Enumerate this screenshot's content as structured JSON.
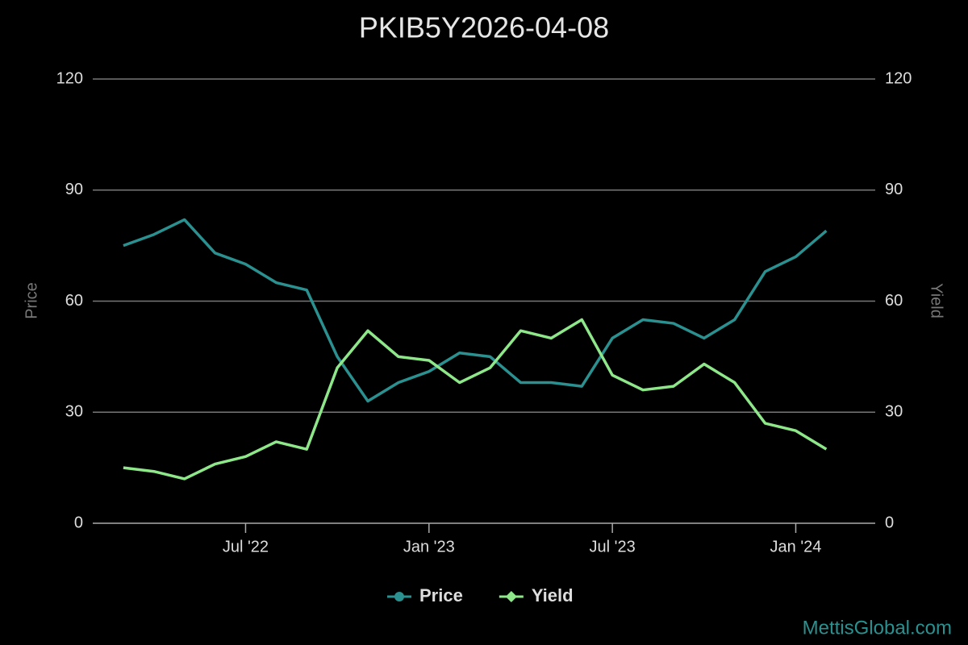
{
  "chart_data": {
    "type": "line",
    "title": "PKIB5Y2026-04-08",
    "y_label": "Price",
    "y2_label": "Yield",
    "watermark": "MettisGlobal.com",
    "legend": "bottom",
    "grid": true,
    "x": [
      "2022-03",
      "2022-04",
      "2022-05",
      "2022-06",
      "2022-07",
      "2022-08",
      "2022-09",
      "2022-10",
      "2022-11",
      "2022-12",
      "2023-01",
      "2023-02",
      "2023-03",
      "2023-04",
      "2023-05",
      "2023-06",
      "2023-07",
      "2023-08",
      "2023-09",
      "2023-10",
      "2023-11",
      "2023-12",
      "2024-01",
      "2024-02"
    ],
    "xlim": [
      "2022-02",
      "2024-03"
    ],
    "xticks": [
      {
        "value": "2022-07",
        "label": "Jul '22"
      },
      {
        "value": "2023-01",
        "label": "Jan '23"
      },
      {
        "value": "2023-07",
        "label": "Jul '23"
      },
      {
        "value": "2024-01",
        "label": "Jan '24"
      }
    ],
    "ylim": [
      0,
      120
    ],
    "yticks": [
      0,
      30,
      60,
      90,
      120
    ],
    "y2lim": [
      0,
      120
    ],
    "y2ticks": [
      0,
      30,
      60,
      90,
      120
    ],
    "series": [
      {
        "name": "Price",
        "color": "#2a9090",
        "marker": "circle",
        "values": [
          75,
          78,
          82,
          73,
          70,
          65,
          63,
          45,
          33,
          38,
          41,
          46,
          45,
          38,
          38,
          37,
          50,
          55,
          54,
          50,
          55,
          68,
          72,
          79
        ]
      },
      {
        "name": "Yield",
        "color": "#8ee88a",
        "marker": "diamond",
        "axis": "y2",
        "values": [
          15,
          14,
          12,
          16,
          18,
          22,
          20,
          42,
          52,
          45,
          44,
          38,
          42,
          52,
          50,
          55,
          40,
          36,
          37,
          43,
          38,
          27,
          25,
          20
        ]
      }
    ]
  }
}
